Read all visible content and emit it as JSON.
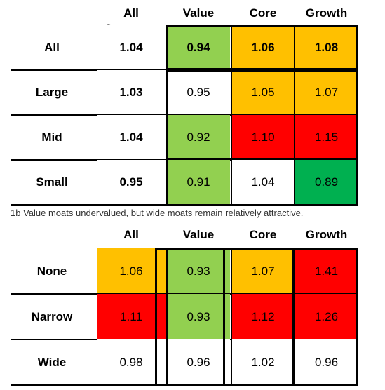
{
  "chart_data": [
    {
      "type": "table",
      "title": "",
      "columns": [
        "All Coverage",
        "Value",
        "Core",
        "Growth"
      ],
      "rows": [
        {
          "label": "All",
          "values": [
            "1.04",
            "0.94",
            "1.06",
            "1.08"
          ],
          "colors": [
            "#ffffff",
            "#92d050",
            "#ffc000",
            "#ffc000"
          ],
          "bold": true
        },
        {
          "label": "Large",
          "values": [
            "1.03",
            "0.95",
            "1.05",
            "1.07"
          ],
          "colors": [
            "#ffffff",
            "#ffffff",
            "#ffc000",
            "#ffc000"
          ],
          "bold": false
        },
        {
          "label": "Mid",
          "values": [
            "1.04",
            "0.92",
            "1.10",
            "1.15"
          ],
          "colors": [
            "#ffffff",
            "#92d050",
            "#ff0000",
            "#ff0000"
          ],
          "bold": false
        },
        {
          "label": "Small",
          "values": [
            "0.95",
            "0.91",
            "1.04",
            "0.89"
          ],
          "colors": [
            "#ffffff",
            "#92d050",
            "#ffffff",
            "#00b050"
          ],
          "bold": false
        }
      ]
    },
    {
      "type": "table",
      "title": "1b  Value moats undervalued, but wide moats remain relatively attractive.",
      "columns": [
        "All",
        "Value",
        "Core",
        "Growth"
      ],
      "rows": [
        {
          "label": "None",
          "values": [
            "1.06",
            "0.93",
            "1.07",
            "1.41"
          ],
          "colors": [
            "#ffc000",
            "#92d050",
            "#ffc000",
            "#ff0000"
          ]
        },
        {
          "label": "Narrow",
          "values": [
            "1.11",
            "0.93",
            "1.12",
            "1.26"
          ],
          "colors": [
            "#ff0000",
            "#92d050",
            "#ff0000",
            "#ff0000"
          ]
        },
        {
          "label": "Wide",
          "values": [
            "0.98",
            "0.96",
            "1.02",
            "0.96"
          ],
          "colors": [
            "#ffffff",
            "#ffffff",
            "#ffffff",
            "#ffffff"
          ]
        }
      ]
    }
  ]
}
